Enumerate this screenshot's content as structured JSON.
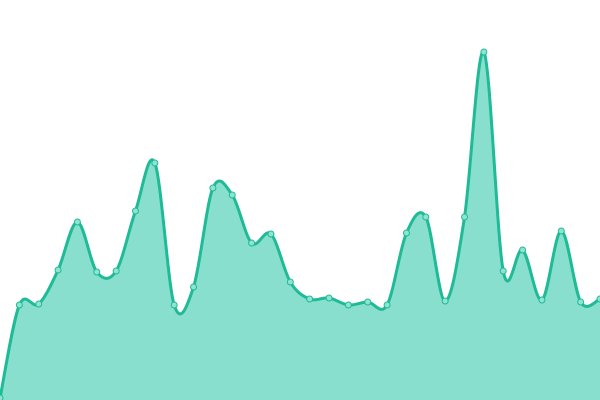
{
  "chart_data": {
    "type": "area",
    "title": "",
    "xlabel": "",
    "ylabel": "",
    "x": [
      0,
      1,
      2,
      3,
      4,
      5,
      6,
      7,
      8,
      9,
      10,
      11,
      12,
      13,
      14,
      15,
      16,
      17,
      18,
      19,
      20,
      21,
      22,
      23,
      24,
      25,
      26,
      27,
      28,
      29,
      30,
      31
    ],
    "series": [
      {
        "values": [
          2,
          95,
          96,
          130,
          178,
          128,
          129,
          189,
          237,
          95,
          113,
          212,
          205,
          157,
          166,
          118,
          101,
          102,
          95,
          98,
          95,
          167,
          183,
          99,
          183,
          348,
          129,
          150,
          100,
          169,
          98,
          101
        ]
      }
    ],
    "ylim": [
      0,
      400
    ],
    "grid": false,
    "axes_visible": false,
    "curve": "smooth",
    "colors": {
      "line": "#1fba96",
      "fill": "#88dfcd",
      "marker_fill": "#8fe3d2",
      "marker_stroke": "#1fba96"
    }
  }
}
